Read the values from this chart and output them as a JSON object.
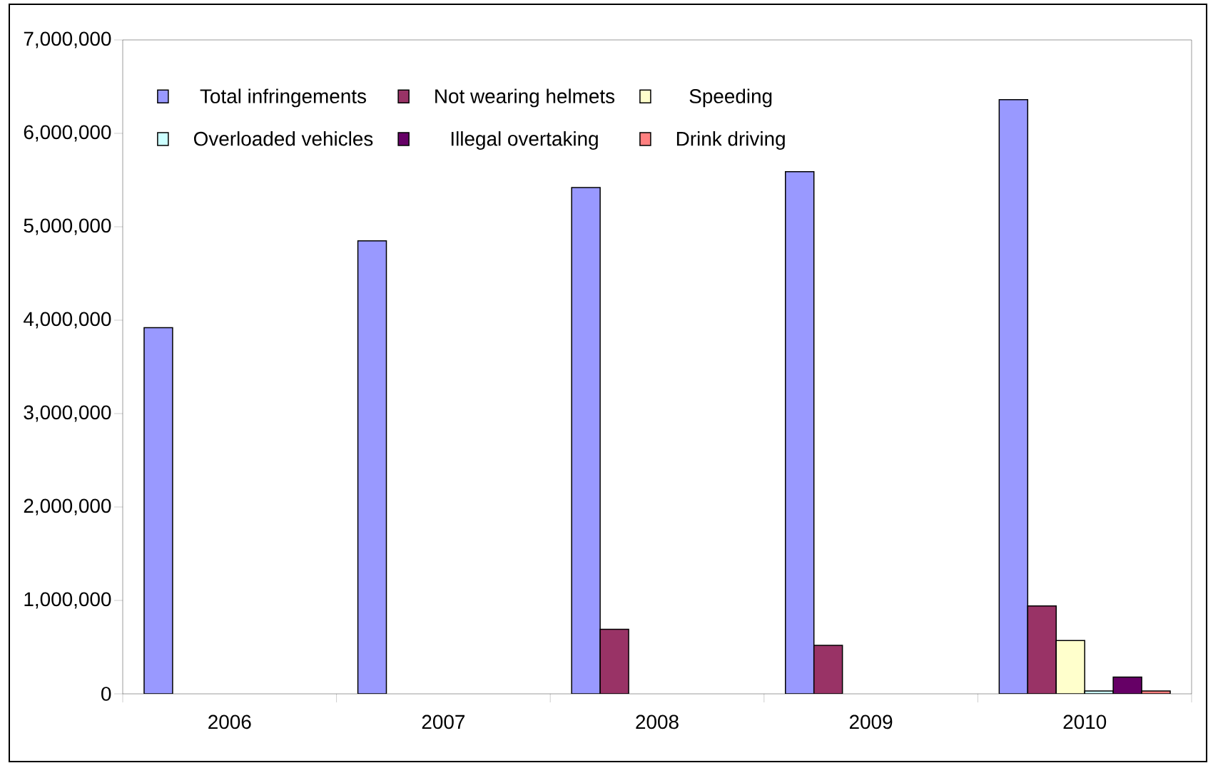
{
  "chart_data": {
    "type": "bar",
    "categories": [
      "2006",
      "2007",
      "2008",
      "2009",
      "2010"
    ],
    "series": [
      {
        "name": "Total infringements",
        "color": "#9999ff",
        "values": [
          3920000,
          4850000,
          5420000,
          5590000,
          6360000
        ]
      },
      {
        "name": "Not wearing helmets",
        "color": "#993366",
        "values": [
          null,
          null,
          690000,
          520000,
          940000
        ]
      },
      {
        "name": "Speeding",
        "color": "#ffffcc",
        "values": [
          null,
          null,
          null,
          null,
          570000
        ]
      },
      {
        "name": "Overloaded vehicles",
        "color": "#ccffff",
        "values": [
          null,
          null,
          null,
          null,
          30000
        ]
      },
      {
        "name": "Illegal overtaking",
        "color": "#660066",
        "values": [
          null,
          null,
          null,
          null,
          180000
        ]
      },
      {
        "name": "Drink driving",
        "color": "#ff8080",
        "values": [
          null,
          null,
          null,
          null,
          30000
        ]
      }
    ],
    "ylim": [
      0,
      7000000
    ],
    "yticks": [
      {
        "value": 0,
        "label": "0"
      },
      {
        "value": 1000000,
        "label": "1,000,000"
      },
      {
        "value": 2000000,
        "label": "2,000,000"
      },
      {
        "value": 3000000,
        "label": "3,000,000"
      },
      {
        "value": 4000000,
        "label": "4,000,000"
      },
      {
        "value": 5000000,
        "label": "5,000,000"
      },
      {
        "value": 6000000,
        "label": "6,000,000"
      },
      {
        "value": 7000000,
        "label": "7,000,000"
      }
    ],
    "legend": "top left",
    "grid": false
  }
}
